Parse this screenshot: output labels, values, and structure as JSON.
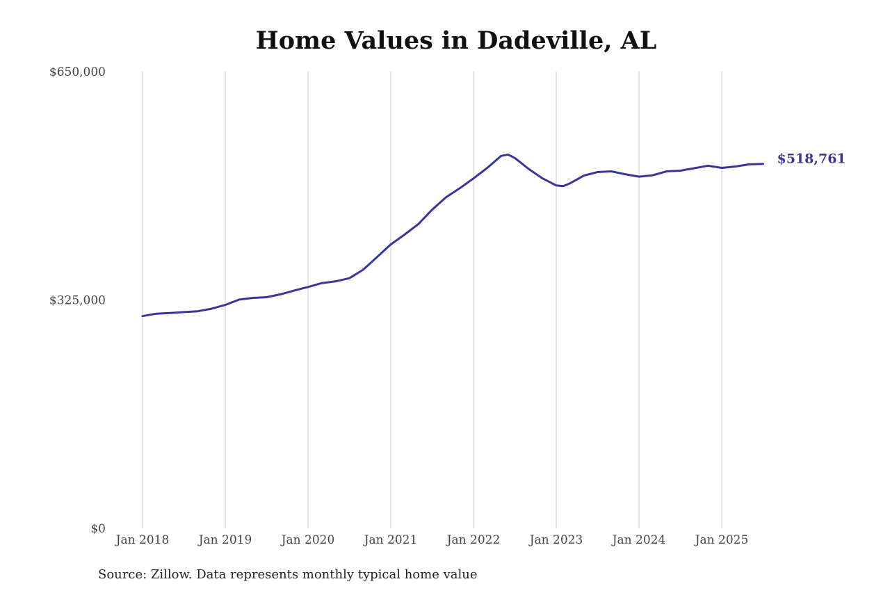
{
  "title": "Home Values in Dadeville, AL",
  "source": "Source: Zillow. Data represents monthly typical home value",
  "colors": {
    "line": "#3a3699",
    "grid": "#c8c8c8",
    "text": "#444444"
  },
  "chart_data": {
    "type": "line",
    "title": "Home Values in Dadeville, AL",
    "xlabel": "",
    "ylabel": "",
    "ylim": [
      0,
      650000
    ],
    "yticks": [
      0,
      325000,
      650000
    ],
    "ytick_labels": [
      "$0",
      "$325,000",
      "$650,000"
    ],
    "xticks": [
      "2018-01",
      "2019-01",
      "2020-01",
      "2021-01",
      "2022-01",
      "2023-01",
      "2024-01",
      "2025-01"
    ],
    "xtick_labels": [
      "Jan 2018",
      "Jan 2019",
      "Jan 2020",
      "Jan 2021",
      "Jan 2022",
      "Jan 2023",
      "Jan 2024",
      "Jan 2025"
    ],
    "grid": "vertical",
    "end_label": "$518,761",
    "series": [
      {
        "x": [
          "2018-01",
          "2018-03",
          "2018-05",
          "2018-07",
          "2018-09",
          "2018-11",
          "2019-01",
          "2019-03",
          "2019-05",
          "2019-07",
          "2019-09",
          "2019-11",
          "2020-01",
          "2020-03",
          "2020-05",
          "2020-07",
          "2020-09",
          "2020-11",
          "2021-01",
          "2021-03",
          "2021-05",
          "2021-07",
          "2021-09",
          "2021-11",
          "2022-01",
          "2022-03",
          "2022-05",
          "2022-06",
          "2022-07",
          "2022-09",
          "2022-11",
          "2023-01",
          "2023-02",
          "2023-03",
          "2023-05",
          "2023-07",
          "2023-09",
          "2023-11",
          "2024-01",
          "2024-03",
          "2024-05",
          "2024-07",
          "2024-09",
          "2024-11",
          "2025-01",
          "2025-03",
          "2025-05",
          "2025-07"
        ],
        "y": [
          302000,
          305500,
          306500,
          307800,
          309000,
          312500,
          318000,
          325500,
          328000,
          329000,
          333000,
          338500,
          343500,
          349000,
          351500,
          356000,
          368000,
          386000,
          404000,
          418000,
          433000,
          453500,
          471000,
          484000,
          498000,
          513000,
          530000,
          532000,
          527000,
          511500,
          498000,
          488000,
          487000,
          491000,
          502000,
          507000,
          508000,
          504000,
          500500,
          502500,
          508000,
          509000,
          512500,
          516000,
          513000,
          515000,
          518000,
          518761
        ]
      }
    ]
  }
}
